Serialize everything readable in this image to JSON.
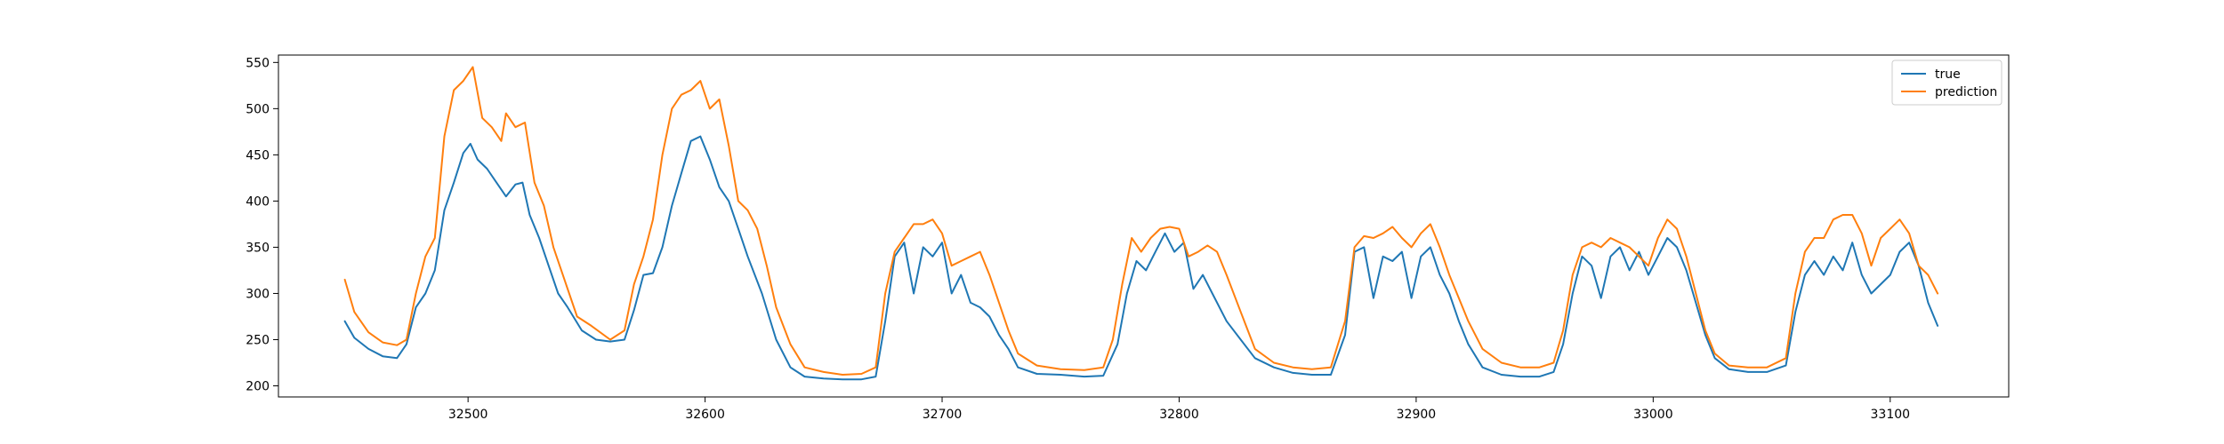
{
  "chart_data": {
    "type": "line",
    "title": "",
    "xlabel": "",
    "ylabel": "",
    "xlim": [
      32420,
      33150
    ],
    "ylim": [
      188,
      558
    ],
    "xticks": [
      32500,
      32600,
      32700,
      32800,
      32900,
      33000,
      33100
    ],
    "yticks": [
      200,
      250,
      300,
      350,
      400,
      450,
      500,
      550
    ],
    "grid": false,
    "legend_position": "top-right",
    "series": [
      {
        "name": "true",
        "color": "#1f77b4",
        "points": [
          [
            32448,
            270
          ],
          [
            32452,
            252
          ],
          [
            32458,
            240
          ],
          [
            32464,
            232
          ],
          [
            32470,
            230
          ],
          [
            32474,
            245
          ],
          [
            32478,
            285
          ],
          [
            32482,
            300
          ],
          [
            32486,
            325
          ],
          [
            32490,
            390
          ],
          [
            32494,
            420
          ],
          [
            32498,
            452
          ],
          [
            32501,
            462
          ],
          [
            32504,
            445
          ],
          [
            32508,
            435
          ],
          [
            32512,
            420
          ],
          [
            32516,
            405
          ],
          [
            32520,
            418
          ],
          [
            32523,
            420
          ],
          [
            32526,
            385
          ],
          [
            32530,
            360
          ],
          [
            32534,
            330
          ],
          [
            32538,
            300
          ],
          [
            32542,
            285
          ],
          [
            32548,
            260
          ],
          [
            32554,
            250
          ],
          [
            32560,
            248
          ],
          [
            32566,
            250
          ],
          [
            32570,
            282
          ],
          [
            32574,
            320
          ],
          [
            32578,
            322
          ],
          [
            32582,
            350
          ],
          [
            32586,
            395
          ],
          [
            32590,
            430
          ],
          [
            32594,
            465
          ],
          [
            32598,
            470
          ],
          [
            32602,
            445
          ],
          [
            32606,
            415
          ],
          [
            32610,
            400
          ],
          [
            32614,
            370
          ],
          [
            32618,
            340
          ],
          [
            32624,
            300
          ],
          [
            32630,
            250
          ],
          [
            32636,
            220
          ],
          [
            32642,
            210
          ],
          [
            32650,
            208
          ],
          [
            32658,
            207
          ],
          [
            32666,
            207
          ],
          [
            32672,
            210
          ],
          [
            32676,
            270
          ],
          [
            32680,
            340
          ],
          [
            32684,
            355
          ],
          [
            32688,
            300
          ],
          [
            32692,
            350
          ],
          [
            32696,
            340
          ],
          [
            32700,
            355
          ],
          [
            32704,
            300
          ],
          [
            32708,
            320
          ],
          [
            32712,
            290
          ],
          [
            32716,
            285
          ],
          [
            32720,
            275
          ],
          [
            32724,
            255
          ],
          [
            32728,
            240
          ],
          [
            32732,
            220
          ],
          [
            32740,
            213
          ],
          [
            32750,
            212
          ],
          [
            32760,
            210
          ],
          [
            32768,
            211
          ],
          [
            32774,
            245
          ],
          [
            32778,
            300
          ],
          [
            32782,
            335
          ],
          [
            32786,
            325
          ],
          [
            32790,
            345
          ],
          [
            32794,
            365
          ],
          [
            32798,
            345
          ],
          [
            32802,
            355
          ],
          [
            32806,
            305
          ],
          [
            32810,
            320
          ],
          [
            32814,
            300
          ],
          [
            32820,
            270
          ],
          [
            32826,
            250
          ],
          [
            32832,
            230
          ],
          [
            32840,
            220
          ],
          [
            32848,
            214
          ],
          [
            32856,
            212
          ],
          [
            32864,
            212
          ],
          [
            32870,
            255
          ],
          [
            32874,
            345
          ],
          [
            32878,
            350
          ],
          [
            32882,
            295
          ],
          [
            32886,
            340
          ],
          [
            32890,
            335
          ],
          [
            32894,
            345
          ],
          [
            32898,
            295
          ],
          [
            32902,
            340
          ],
          [
            32906,
            350
          ],
          [
            32910,
            320
          ],
          [
            32914,
            300
          ],
          [
            32918,
            270
          ],
          [
            32922,
            245
          ],
          [
            32928,
            220
          ],
          [
            32936,
            212
          ],
          [
            32944,
            210
          ],
          [
            32952,
            210
          ],
          [
            32958,
            215
          ],
          [
            32962,
            245
          ],
          [
            32966,
            300
          ],
          [
            32970,
            340
          ],
          [
            32974,
            330
          ],
          [
            32978,
            295
          ],
          [
            32982,
            340
          ],
          [
            32986,
            350
          ],
          [
            32990,
            325
          ],
          [
            32994,
            345
          ],
          [
            32998,
            320
          ],
          [
            33002,
            340
          ],
          [
            33006,
            360
          ],
          [
            33010,
            350
          ],
          [
            33014,
            325
          ],
          [
            33018,
            290
          ],
          [
            33022,
            255
          ],
          [
            33026,
            230
          ],
          [
            33032,
            218
          ],
          [
            33040,
            215
          ],
          [
            33048,
            215
          ],
          [
            33056,
            222
          ],
          [
            33060,
            280
          ],
          [
            33064,
            320
          ],
          [
            33068,
            335
          ],
          [
            33072,
            320
          ],
          [
            33076,
            340
          ],
          [
            33080,
            325
          ],
          [
            33084,
            355
          ],
          [
            33088,
            320
          ],
          [
            33092,
            300
          ],
          [
            33096,
            310
          ],
          [
            33100,
            320
          ],
          [
            33104,
            345
          ],
          [
            33108,
            355
          ],
          [
            33112,
            330
          ],
          [
            33116,
            290
          ],
          [
            33120,
            265
          ]
        ]
      },
      {
        "name": "prediction",
        "color": "#ff7f0e",
        "points": [
          [
            32448,
            315
          ],
          [
            32452,
            280
          ],
          [
            32458,
            258
          ],
          [
            32464,
            247
          ],
          [
            32470,
            244
          ],
          [
            32474,
            250
          ],
          [
            32478,
            300
          ],
          [
            32482,
            340
          ],
          [
            32486,
            360
          ],
          [
            32490,
            470
          ],
          [
            32494,
            520
          ],
          [
            32498,
            530
          ],
          [
            32502,
            545
          ],
          [
            32506,
            490
          ],
          [
            32510,
            480
          ],
          [
            32514,
            465
          ],
          [
            32516,
            495
          ],
          [
            32520,
            480
          ],
          [
            32524,
            485
          ],
          [
            32528,
            420
          ],
          [
            32532,
            395
          ],
          [
            32536,
            350
          ],
          [
            32540,
            320
          ],
          [
            32546,
            275
          ],
          [
            32552,
            265
          ],
          [
            32560,
            250
          ],
          [
            32566,
            260
          ],
          [
            32570,
            310
          ],
          [
            32574,
            340
          ],
          [
            32578,
            380
          ],
          [
            32582,
            450
          ],
          [
            32586,
            500
          ],
          [
            32590,
            515
          ],
          [
            32594,
            520
          ],
          [
            32598,
            530
          ],
          [
            32602,
            500
          ],
          [
            32606,
            510
          ],
          [
            32610,
            460
          ],
          [
            32614,
            400
          ],
          [
            32618,
            390
          ],
          [
            32622,
            370
          ],
          [
            32626,
            330
          ],
          [
            32630,
            285
          ],
          [
            32636,
            245
          ],
          [
            32642,
            220
          ],
          [
            32650,
            215
          ],
          [
            32658,
            212
          ],
          [
            32666,
            213
          ],
          [
            32672,
            220
          ],
          [
            32676,
            300
          ],
          [
            32680,
            345
          ],
          [
            32684,
            360
          ],
          [
            32688,
            375
          ],
          [
            32692,
            375
          ],
          [
            32696,
            380
          ],
          [
            32700,
            365
          ],
          [
            32704,
            330
          ],
          [
            32708,
            335
          ],
          [
            32712,
            340
          ],
          [
            32716,
            345
          ],
          [
            32720,
            320
          ],
          [
            32724,
            290
          ],
          [
            32728,
            260
          ],
          [
            32732,
            235
          ],
          [
            32740,
            222
          ],
          [
            32750,
            218
          ],
          [
            32760,
            217
          ],
          [
            32768,
            220
          ],
          [
            32772,
            250
          ],
          [
            32776,
            310
          ],
          [
            32780,
            360
          ],
          [
            32784,
            345
          ],
          [
            32788,
            360
          ],
          [
            32792,
            370
          ],
          [
            32796,
            372
          ],
          [
            32800,
            370
          ],
          [
            32804,
            340
          ],
          [
            32808,
            345
          ],
          [
            32812,
            352
          ],
          [
            32816,
            345
          ],
          [
            32820,
            320
          ],
          [
            32826,
            280
          ],
          [
            32832,
            240
          ],
          [
            32840,
            225
          ],
          [
            32848,
            220
          ],
          [
            32856,
            218
          ],
          [
            32864,
            220
          ],
          [
            32870,
            270
          ],
          [
            32874,
            350
          ],
          [
            32878,
            362
          ],
          [
            32882,
            360
          ],
          [
            32886,
            365
          ],
          [
            32890,
            372
          ],
          [
            32894,
            360
          ],
          [
            32898,
            350
          ],
          [
            32902,
            365
          ],
          [
            32906,
            375
          ],
          [
            32910,
            350
          ],
          [
            32914,
            320
          ],
          [
            32918,
            295
          ],
          [
            32922,
            270
          ],
          [
            32928,
            240
          ],
          [
            32936,
            225
          ],
          [
            32944,
            220
          ],
          [
            32952,
            220
          ],
          [
            32958,
            225
          ],
          [
            32962,
            260
          ],
          [
            32966,
            320
          ],
          [
            32970,
            350
          ],
          [
            32974,
            355
          ],
          [
            32978,
            350
          ],
          [
            32982,
            360
          ],
          [
            32986,
            355
          ],
          [
            32990,
            350
          ],
          [
            32994,
            340
          ],
          [
            32998,
            330
          ],
          [
            33002,
            360
          ],
          [
            33006,
            380
          ],
          [
            33010,
            370
          ],
          [
            33014,
            340
          ],
          [
            33018,
            300
          ],
          [
            33022,
            260
          ],
          [
            33026,
            235
          ],
          [
            33032,
            222
          ],
          [
            33040,
            220
          ],
          [
            33048,
            220
          ],
          [
            33056,
            230
          ],
          [
            33060,
            300
          ],
          [
            33064,
            345
          ],
          [
            33068,
            360
          ],
          [
            33072,
            360
          ],
          [
            33076,
            380
          ],
          [
            33080,
            385
          ],
          [
            33084,
            385
          ],
          [
            33088,
            365
          ],
          [
            33092,
            330
          ],
          [
            33096,
            360
          ],
          [
            33100,
            370
          ],
          [
            33104,
            380
          ],
          [
            33108,
            365
          ],
          [
            33112,
            330
          ],
          [
            33116,
            320
          ],
          [
            33120,
            300
          ]
        ]
      }
    ]
  }
}
